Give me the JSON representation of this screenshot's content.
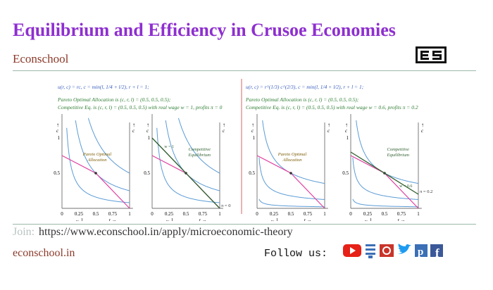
{
  "header": {
    "title": "Equilibrium and Efficiency in Crusoe Economies",
    "brand": "Econschool"
  },
  "figure": {
    "panels": [
      {
        "formula": "u(r, c) = rc,  c = min(l, 1/4 + l/2),  r + l = 1;",
        "pareto": "Pareto Optimal Allocation is (c, r, l) = (0.5, 0.5, 0.5);",
        "competitive": "Competitive Eq. is (c, r, l) = (0.5, 0.5, 0.5) with real wage w = 1,  profits π = 0",
        "wage_label": "w = 1",
        "profit_label": "π = 0"
      },
      {
        "formula": "u(r, c) = r^(1/3) c^(2/3),  c = min(l, 1/4 + l/2),  r + l = 1;",
        "pareto": "Pareto Optimal Allocation is (c, r, l) = (0.5, 0.5, 0.5);",
        "competitive": "Competitive Eq. is (c, r, l) = (0.5, 0.5, 0.5) with real wage w = 0.6,  profits π = 0.2",
        "wage_label": "w = 0.6",
        "profit_label": "π = 0.2"
      }
    ],
    "pareto_label": [
      "Pareto Optimal",
      "Allocation"
    ],
    "competitive_label": [
      "Competitive",
      "Equilibrium"
    ],
    "x_tick_labels": [
      "0",
      "0.25",
      "0.5",
      "0.75",
      "1"
    ],
    "y_tick_labels": [
      "0.5",
      "1"
    ],
    "left_arrow": "← l",
    "right_arrow": "r →",
    "c_label": "c",
    "up_arrow": "↑"
  },
  "footer": {
    "join": "Join:",
    "url": "https://www.econschool.in/apply/microeconomic-theory",
    "site": "econschool.in",
    "follow": "Follow us:"
  }
}
